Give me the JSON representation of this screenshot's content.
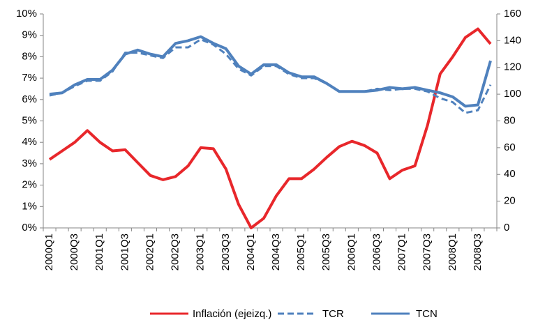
{
  "chart_data": {
    "type": "line",
    "categories": [
      "2000Q1",
      null,
      "2000Q3",
      null,
      "2001Q1",
      null,
      "2001Q3",
      null,
      "2002Q1",
      null,
      "2002Q3",
      null,
      "2003Q1",
      null,
      "2003Q3",
      null,
      "2004Q1",
      null,
      "2004Q3",
      null,
      "2005Q1",
      null,
      "2005Q3",
      null,
      "2006Q1",
      null,
      "2006Q3",
      null,
      "2007Q1",
      null,
      "2007Q3",
      null,
      "2008Q1",
      null,
      "2008Q3",
      null
    ],
    "series": [
      {
        "name": "Inflación (ejeizq.)",
        "color": "#e8272b",
        "style": "solid",
        "axis": "y",
        "values": [
          3.2,
          3.6,
          4.0,
          4.55,
          4.0,
          3.6,
          3.65,
          3.05,
          2.45,
          2.25,
          2.4,
          2.9,
          3.75,
          3.7,
          2.75,
          1.1,
          0.0,
          0.45,
          1.5,
          2.3,
          2.3,
          2.75,
          3.3,
          3.8,
          4.05,
          3.85,
          3.5,
          2.3,
          2.7,
          2.9,
          4.8,
          7.2,
          8.0,
          8.9,
          9.3,
          8.6
        ]
      },
      {
        "name": "TCR",
        "color": "#4f81bd",
        "style": "dashed",
        "axis": "y2",
        "values": [
          99,
          101,
          106,
          110,
          110,
          117,
          131,
          131,
          129,
          127,
          135,
          135,
          141,
          137,
          130,
          119,
          114,
          121,
          121,
          115,
          112,
          112,
          108,
          102,
          102,
          102,
          104,
          103,
          104,
          104,
          102,
          97,
          94,
          86,
          88,
          107
        ]
      },
      {
        "name": "TCN",
        "color": "#4f81bd",
        "style": "solid",
        "axis": "y2",
        "values": [
          100,
          101,
          107,
          111,
          111,
          118,
          130,
          133,
          130,
          128,
          138,
          140,
          143,
          138,
          134,
          121,
          115,
          122,
          122,
          116,
          113,
          113,
          108,
          102,
          102,
          102,
          103,
          105,
          104,
          105,
          103,
          101,
          98,
          91,
          92,
          125
        ]
      }
    ],
    "ylim": [
      0,
      10
    ],
    "yticks": [
      {
        "value": 0,
        "label": "0%"
      },
      {
        "value": 1,
        "label": "1%"
      },
      {
        "value": 2,
        "label": "2%"
      },
      {
        "value": 3,
        "label": "3%"
      },
      {
        "value": 4,
        "label": "4%"
      },
      {
        "value": 5,
        "label": "5%"
      },
      {
        "value": 6,
        "label": "6%"
      },
      {
        "value": 7,
        "label": "7%"
      },
      {
        "value": 8,
        "label": "8%"
      },
      {
        "value": 9,
        "label": "9%"
      },
      {
        "value": 10,
        "label": "10%"
      }
    ],
    "y2lim": [
      0,
      160
    ],
    "y2ticks": [
      0,
      20,
      40,
      60,
      80,
      100,
      120,
      140,
      160
    ],
    "grid": false
  }
}
